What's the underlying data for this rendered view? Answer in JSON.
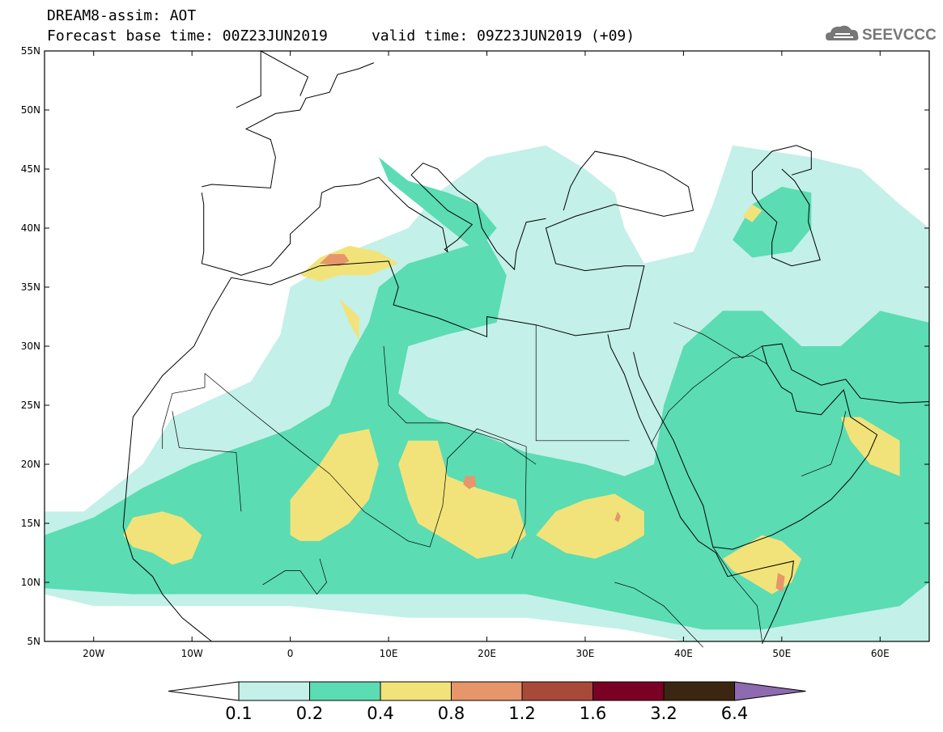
{
  "title": {
    "line1": "DREAM8-assim: AOT",
    "line2": "Forecast base time: 00Z23JUN2019     valid time: 09Z23JUN2019 (+09)"
  },
  "logo": {
    "text": "SEEVCCC",
    "icon": "cloud-icon"
  },
  "map": {
    "lon_range": [
      -25,
      65
    ],
    "lat_range": [
      5,
      55
    ],
    "lon_ticks": [
      {
        "value": -20,
        "label": "20W"
      },
      {
        "value": -10,
        "label": "10W"
      },
      {
        "value": 0,
        "label": "0"
      },
      {
        "value": 10,
        "label": "10E"
      },
      {
        "value": 20,
        "label": "20E"
      },
      {
        "value": 30,
        "label": "30E"
      },
      {
        "value": 40,
        "label": "40E"
      },
      {
        "value": 50,
        "label": "50E"
      },
      {
        "value": 60,
        "label": "60E"
      }
    ],
    "lat_ticks": [
      {
        "value": 55,
        "label": "55N"
      },
      {
        "value": 50,
        "label": "50N"
      },
      {
        "value": 45,
        "label": "45N"
      },
      {
        "value": 40,
        "label": "40N"
      },
      {
        "value": 35,
        "label": "35N"
      },
      {
        "value": 30,
        "label": "30N"
      },
      {
        "value": 25,
        "label": "25N"
      },
      {
        "value": 20,
        "label": "20N"
      },
      {
        "value": 15,
        "label": "15N"
      },
      {
        "value": 10,
        "label": "10N"
      },
      {
        "value": 5,
        "label": "5N"
      }
    ]
  },
  "colorbar": {
    "labels": [
      "0.1",
      "0.2",
      "0.4",
      "0.8",
      "1.2",
      "1.6",
      "3.2",
      "6.4"
    ],
    "colors": [
      "#c3f0e8",
      "#5bdcb3",
      "#f1e37a",
      "#e6966a",
      "#a84a3a",
      "#7a0026",
      "#3b2612",
      "#8e6ab0"
    ]
  },
  "fields": {
    "levels": [
      {
        "level": "0.1",
        "color": "#c3f0e8",
        "polygons": [
          [
            [
              -25,
              9
            ],
            [
              -25,
              16
            ],
            [
              -21,
              16
            ],
            [
              -15,
              20
            ],
            [
              -12,
              24
            ],
            [
              -4,
              27
            ],
            [
              -1,
              31
            ],
            [
              0,
              35
            ],
            [
              6,
              38
            ],
            [
              12,
              40
            ],
            [
              15,
              43
            ],
            [
              20,
              46
            ],
            [
              26,
              47
            ],
            [
              30,
              45
            ],
            [
              33,
              43
            ],
            [
              34,
              40
            ],
            [
              36,
              37
            ],
            [
              41,
              38
            ],
            [
              43,
              42
            ],
            [
              45,
              47
            ],
            [
              53,
              46
            ],
            [
              58,
              45
            ],
            [
              62,
              42
            ],
            [
              65,
              40
            ],
            [
              65,
              5
            ],
            [
              40,
              5
            ],
            [
              34,
              6
            ],
            [
              24,
              7
            ],
            [
              12,
              7
            ],
            [
              0,
              8
            ],
            [
              -8,
              8
            ],
            [
              -15,
              8
            ],
            [
              -20,
              8
            ]
          ]
        ]
      },
      {
        "level": "0.2",
        "color": "#5bdcb3",
        "polygons": [
          [
            [
              -25,
              9.5
            ],
            [
              -25,
              14
            ],
            [
              -20,
              15.5
            ],
            [
              -15,
              18
            ],
            [
              -10,
              20
            ],
            [
              -5,
              21.5
            ],
            [
              0,
              23
            ],
            [
              4,
              25
            ],
            [
              6,
              29
            ],
            [
              8,
              32
            ],
            [
              9,
              35
            ],
            [
              12,
              37
            ],
            [
              16,
              38
            ],
            [
              20,
              39
            ],
            [
              22,
              36
            ],
            [
              21,
              32
            ],
            [
              16,
              31
            ],
            [
              12,
              30
            ],
            [
              11,
              26
            ],
            [
              14,
              24
            ],
            [
              18,
              23
            ],
            [
              24,
              21
            ],
            [
              30,
              20
            ],
            [
              34,
              19
            ],
            [
              37,
              20
            ],
            [
              38,
              25
            ],
            [
              40,
              30
            ],
            [
              44,
              33
            ],
            [
              48,
              33
            ],
            [
              52,
              30
            ],
            [
              56,
              30
            ],
            [
              60,
              33
            ],
            [
              65,
              32
            ],
            [
              65,
              10
            ],
            [
              62,
              8
            ],
            [
              55,
              7
            ],
            [
              48,
              6
            ],
            [
              42,
              6
            ],
            [
              36,
              7
            ],
            [
              30,
              8
            ],
            [
              24,
              9
            ],
            [
              16,
              9
            ],
            [
              8,
              9
            ],
            [
              0,
              9
            ],
            [
              -8,
              9
            ],
            [
              -16,
              9
            ]
          ],
          [
            [
              45,
              39
            ],
            [
              47,
              42
            ],
            [
              50,
              43.5
            ],
            [
              53,
              43
            ],
            [
              53,
              40
            ],
            [
              51,
              38
            ],
            [
              47,
              37.5
            ]
          ],
          [
            [
              9,
              46
            ],
            [
              12,
              44
            ],
            [
              16,
              43
            ],
            [
              19,
              42
            ],
            [
              21,
              40
            ],
            [
              19,
              38
            ],
            [
              16,
              40
            ],
            [
              13,
              42
            ],
            [
              10,
              44
            ]
          ]
        ]
      },
      {
        "level": "0.4",
        "color": "#f1e37a",
        "polygons": [
          [
            [
              -17,
              14
            ],
            [
              -16,
              15.5
            ],
            [
              -13,
              16
            ],
            [
              -11,
              15.5
            ],
            [
              -9,
              14
            ],
            [
              -10,
              12
            ],
            [
              -12,
              11.5
            ],
            [
              -14,
              12.5
            ],
            [
              -16,
              13
            ]
          ],
          [
            [
              0,
              14
            ],
            [
              0,
              17
            ],
            [
              3,
              20
            ],
            [
              5,
              22.5
            ],
            [
              8,
              23
            ],
            [
              9,
              20
            ],
            [
              8,
              17
            ],
            [
              6,
              15
            ],
            [
              3,
              13.5
            ],
            [
              1,
              13.5
            ]
          ],
          [
            [
              11,
              20
            ],
            [
              12,
              22
            ],
            [
              15,
              22
            ],
            [
              16,
              19
            ],
            [
              19,
              18
            ],
            [
              23,
              17
            ],
            [
              24,
              14
            ],
            [
              22,
              12.5
            ],
            [
              19,
              12
            ],
            [
              17,
              13
            ],
            [
              15,
              14
            ],
            [
              13,
              15
            ],
            [
              12,
              17
            ]
          ],
          [
            [
              25,
              14
            ],
            [
              27,
              16
            ],
            [
              30,
              17
            ],
            [
              33,
              17.5
            ],
            [
              36,
              16
            ],
            [
              36,
              14
            ],
            [
              34,
              13
            ],
            [
              31,
              12
            ],
            [
              28,
              12.5
            ]
          ],
          [
            [
              1,
              36
            ],
            [
              3,
              37.5
            ],
            [
              6,
              38.5
            ],
            [
              9,
              38
            ],
            [
              11,
              37
            ],
            [
              8,
              36
            ],
            [
              5,
              36
            ],
            [
              3,
              35.5
            ]
          ],
          [
            [
              5,
              34
            ],
            [
              6,
              32
            ],
            [
              7,
              30.5
            ],
            [
              7,
              32.5
            ]
          ],
          [
            [
              56,
              24
            ],
            [
              57,
              22
            ],
            [
              59,
              20
            ],
            [
              62,
              19
            ],
            [
              62,
              22
            ],
            [
              60,
              23
            ],
            [
              58,
              24
            ]
          ],
          [
            [
              44,
              12
            ],
            [
              46,
              13
            ],
            [
              48,
              14
            ],
            [
              50,
              13.5
            ],
            [
              52,
              12
            ],
            [
              51,
              10
            ],
            [
              49,
              9
            ],
            [
              47,
              10
            ],
            [
              45,
              11
            ]
          ],
          [
            [
              46,
              41
            ],
            [
              47,
              42
            ],
            [
              48,
              41.5
            ],
            [
              47,
              40.5
            ]
          ]
        ]
      },
      {
        "level": "0.8",
        "color": "#e6966a",
        "polygons": [
          [
            [
              3,
              37
            ],
            [
              4,
              37.8
            ],
            [
              5.5,
              37.8
            ],
            [
              6,
              37.2
            ],
            [
              5,
              36.8
            ]
          ],
          [
            [
              17.6,
              18.3
            ],
            [
              17.8,
              19
            ],
            [
              18.8,
              19
            ],
            [
              18.9,
              18.2
            ],
            [
              18.2,
              17.9
            ]
          ],
          [
            [
              33,
              15.3
            ],
            [
              33.3,
              16
            ],
            [
              33.6,
              15.6
            ],
            [
              33.4,
              15.1
            ]
          ],
          [
            [
              49.4,
              9.5
            ],
            [
              49.6,
              10.8
            ],
            [
              50.3,
              10.5
            ],
            [
              50.1,
              9.2
            ]
          ]
        ]
      }
    ]
  }
}
